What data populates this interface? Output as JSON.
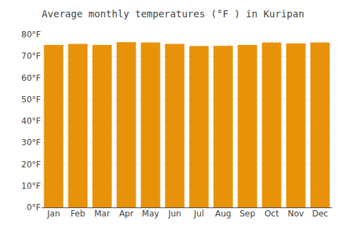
{
  "chart_data": {
    "type": "bar",
    "title": "Average monthly temperatures (°F ) in Kuripan",
    "categories": [
      "Jan",
      "Feb",
      "Mar",
      "Apr",
      "May",
      "Jun",
      "Jul",
      "Aug",
      "Sep",
      "Oct",
      "Nov",
      "Dec"
    ],
    "values": [
      75.2,
      75.7,
      75.2,
      76.5,
      76.3,
      75.7,
      74.7,
      74.8,
      75.2,
      76.3,
      75.9,
      76.3
    ],
    "color": "#E8920A",
    "ylim": [
      0,
      80
    ],
    "yticks": [
      {
        "value": 0,
        "label": "0°F"
      },
      {
        "value": 10,
        "label": "10°F"
      },
      {
        "value": 20,
        "label": "20°F"
      },
      {
        "value": 30,
        "label": "30°F"
      },
      {
        "value": 40,
        "label": "40°F"
      },
      {
        "value": 50,
        "label": "50°F"
      },
      {
        "value": 60,
        "label": "60°F"
      },
      {
        "value": 70,
        "label": "70°F"
      },
      {
        "value": 80,
        "label": "80°F"
      }
    ],
    "grid": true
  }
}
